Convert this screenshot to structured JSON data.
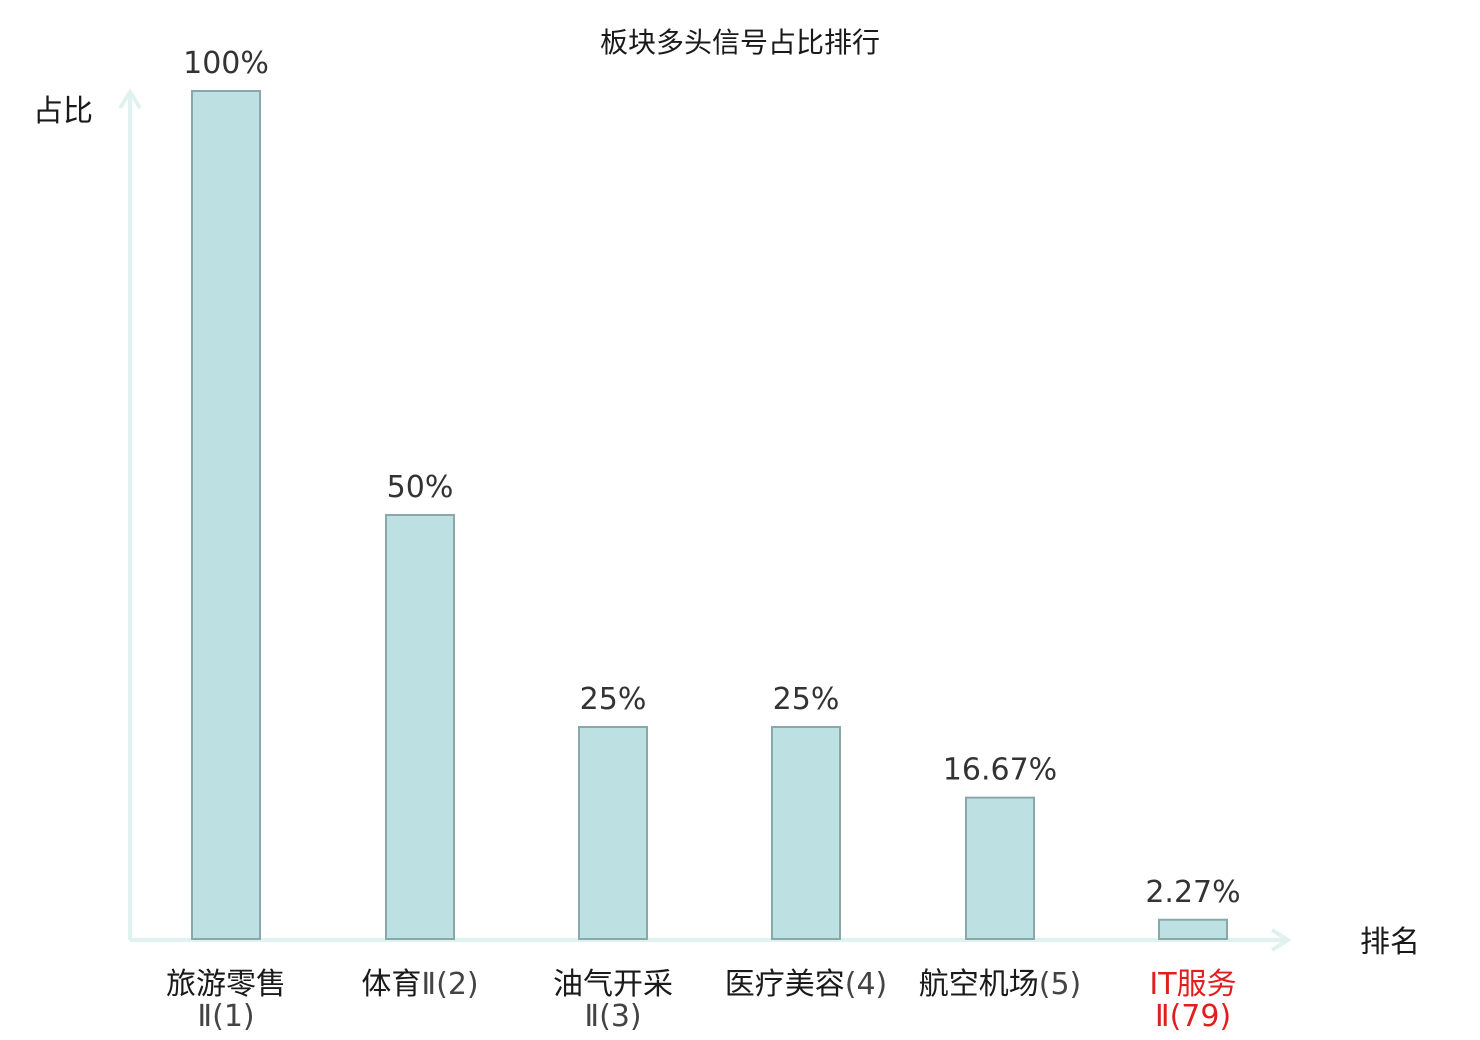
{
  "colors": {
    "bar_fill": "#bde0e3",
    "bar_stroke": "#8aa8aa",
    "axis": "#e0f2ef",
    "highlight": "#e0201f",
    "text": "#1a1a1a"
  },
  "chart_data": {
    "type": "bar",
    "title": "板块多头信号占比排行",
    "ylabel": "占比",
    "xlabel": "排名",
    "ylim": [
      0,
      100
    ],
    "grid": false,
    "legend": "none",
    "categories": [
      {
        "line1": "旅游零售",
        "line2": "Ⅱ(1)",
        "highlight": false
      },
      {
        "line1": "体育",
        "line2": "Ⅱ(2)",
        "highlight": false,
        "single_line": true
      },
      {
        "line1": "油气开采",
        "line2": "Ⅱ(3)",
        "highlight": false
      },
      {
        "line1": "医疗美容",
        "line2": "(4)",
        "highlight": false,
        "single_line": true
      },
      {
        "line1": "航空机场",
        "line2": "(5)",
        "highlight": false,
        "single_line": true
      },
      {
        "line1": "IT服务",
        "line2": "Ⅱ(79)",
        "highlight": true
      }
    ],
    "values": [
      100,
      50,
      25,
      25,
      16.67,
      2.27
    ],
    "value_labels": [
      "100%",
      "50%",
      "25%",
      "25%",
      "16.67%",
      "2.27%"
    ]
  }
}
